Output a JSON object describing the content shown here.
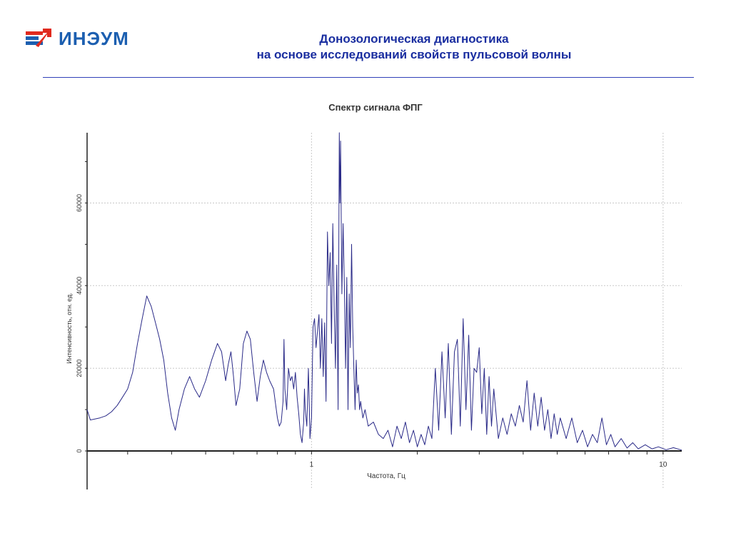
{
  "logo": {
    "text": "ИНЭУМ",
    "arrow_color": "#e02a1e",
    "text_color": "#1c5fb0"
  },
  "header": {
    "line1": "Донозологическая диагностика",
    "line2": "на основе исследований свойств пульсовой волны",
    "color": "#1a2ea0"
  },
  "chart_data": {
    "type": "line",
    "title": "Спектр сигнала ФПГ",
    "xlabel": "Частота, Гц",
    "ylabel": "Интенсивность, отн. ед.",
    "x_scale": "log",
    "xlim": [
      0.23,
      11.3
    ],
    "ylim": [
      0,
      77000
    ],
    "x_ticks": [
      {
        "value": 1,
        "label": "1"
      },
      {
        "value": 10,
        "label": "10"
      }
    ],
    "y_ticks": [
      {
        "value": 0,
        "label": "0"
      },
      {
        "value": 20000,
        "label": "20000"
      },
      {
        "value": 40000,
        "label": "40000"
      },
      {
        "value": 60000,
        "label": "60000"
      }
    ],
    "grid": true,
    "line_color": "#2a2a88",
    "series": [
      {
        "values": [
          [
            0.23,
            10000
          ],
          [
            0.235,
            7500
          ],
          [
            0.25,
            8000
          ],
          [
            0.26,
            8500
          ],
          [
            0.27,
            9500
          ],
          [
            0.28,
            11000
          ],
          [
            0.29,
            13000
          ],
          [
            0.3,
            15000
          ],
          [
            0.31,
            19000
          ],
          [
            0.32,
            26000
          ],
          [
            0.33,
            32000
          ],
          [
            0.34,
            37500
          ],
          [
            0.35,
            35000
          ],
          [
            0.36,
            31000
          ],
          [
            0.37,
            27000
          ],
          [
            0.38,
            22000
          ],
          [
            0.39,
            14000
          ],
          [
            0.4,
            8000
          ],
          [
            0.41,
            5000
          ],
          [
            0.42,
            10000
          ],
          [
            0.435,
            15000
          ],
          [
            0.45,
            18000
          ],
          [
            0.465,
            15000
          ],
          [
            0.48,
            13000
          ],
          [
            0.5,
            17000
          ],
          [
            0.52,
            22000
          ],
          [
            0.54,
            26000
          ],
          [
            0.555,
            24000
          ],
          [
            0.57,
            17000
          ],
          [
            0.58,
            21000
          ],
          [
            0.59,
            24000
          ],
          [
            0.6,
            18000
          ],
          [
            0.61,
            11000
          ],
          [
            0.625,
            15000
          ],
          [
            0.64,
            26000
          ],
          [
            0.655,
            29000
          ],
          [
            0.67,
            27000
          ],
          [
            0.685,
            19000
          ],
          [
            0.7,
            12000
          ],
          [
            0.715,
            18000
          ],
          [
            0.73,
            22000
          ],
          [
            0.745,
            19000
          ],
          [
            0.76,
            17000
          ],
          [
            0.78,
            15000
          ],
          [
            0.8,
            8000
          ],
          [
            0.81,
            6000
          ],
          [
            0.82,
            7000
          ],
          [
            0.83,
            12000
          ],
          [
            0.835,
            27000
          ],
          [
            0.84,
            15000
          ],
          [
            0.85,
            10000
          ],
          [
            0.86,
            20000
          ],
          [
            0.87,
            17000
          ],
          [
            0.88,
            18000
          ],
          [
            0.89,
            15000
          ],
          [
            0.9,
            19000
          ],
          [
            0.91,
            13000
          ],
          [
            0.92,
            9000
          ],
          [
            0.93,
            4000
          ],
          [
            0.94,
            2000
          ],
          [
            0.95,
            7000
          ],
          [
            0.955,
            15000
          ],
          [
            0.96,
            10000
          ],
          [
            0.97,
            6000
          ],
          [
            0.98,
            20000
          ],
          [
            0.985,
            12000
          ],
          [
            0.99,
            3000
          ],
          [
            1.0,
            8000
          ],
          [
            1.01,
            30000
          ],
          [
            1.02,
            32000
          ],
          [
            1.03,
            25000
          ],
          [
            1.05,
            33000
          ],
          [
            1.06,
            20000
          ],
          [
            1.07,
            32000
          ],
          [
            1.08,
            18000
          ],
          [
            1.09,
            31000
          ],
          [
            1.1,
            12000
          ],
          [
            1.11,
            53000
          ],
          [
            1.12,
            40000
          ],
          [
            1.13,
            48000
          ],
          [
            1.14,
            26000
          ],
          [
            1.15,
            55000
          ],
          [
            1.16,
            35000
          ],
          [
            1.17,
            20000
          ],
          [
            1.18,
            45000
          ],
          [
            1.19,
            10000
          ],
          [
            1.2,
            77000
          ],
          [
            1.205,
            60000
          ],
          [
            1.21,
            75000
          ],
          [
            1.22,
            38000
          ],
          [
            1.23,
            55000
          ],
          [
            1.24,
            40000
          ],
          [
            1.25,
            20000
          ],
          [
            1.26,
            42000
          ],
          [
            1.27,
            10000
          ],
          [
            1.28,
            38000
          ],
          [
            1.29,
            25000
          ],
          [
            1.3,
            50000
          ],
          [
            1.31,
            30000
          ],
          [
            1.32,
            20000
          ],
          [
            1.33,
            10000
          ],
          [
            1.34,
            22000
          ],
          [
            1.35,
            14000
          ],
          [
            1.36,
            16000
          ],
          [
            1.37,
            10000
          ],
          [
            1.38,
            12000
          ],
          [
            1.4,
            8000
          ],
          [
            1.42,
            10000
          ],
          [
            1.45,
            6000
          ],
          [
            1.5,
            7000
          ],
          [
            1.55,
            4000
          ],
          [
            1.6,
            3000
          ],
          [
            1.65,
            5000
          ],
          [
            1.7,
            1000
          ],
          [
            1.75,
            6000
          ],
          [
            1.8,
            3000
          ],
          [
            1.85,
            7000
          ],
          [
            1.9,
            2000
          ],
          [
            1.95,
            5000
          ],
          [
            2.0,
            1000
          ],
          [
            2.05,
            4000
          ],
          [
            2.1,
            1500
          ],
          [
            2.15,
            6000
          ],
          [
            2.2,
            3000
          ],
          [
            2.25,
            20000
          ],
          [
            2.3,
            5000
          ],
          [
            2.35,
            24000
          ],
          [
            2.4,
            8000
          ],
          [
            2.45,
            26000
          ],
          [
            2.5,
            4000
          ],
          [
            2.55,
            24000
          ],
          [
            2.6,
            27000
          ],
          [
            2.65,
            6000
          ],
          [
            2.7,
            32000
          ],
          [
            2.75,
            10000
          ],
          [
            2.8,
            28000
          ],
          [
            2.85,
            5000
          ],
          [
            2.9,
            20000
          ],
          [
            2.95,
            19000
          ],
          [
            3.0,
            25000
          ],
          [
            3.05,
            9000
          ],
          [
            3.1,
            20000
          ],
          [
            3.15,
            4000
          ],
          [
            3.2,
            18000
          ],
          [
            3.25,
            6000
          ],
          [
            3.3,
            15000
          ],
          [
            3.4,
            3000
          ],
          [
            3.5,
            8000
          ],
          [
            3.6,
            4000
          ],
          [
            3.7,
            9000
          ],
          [
            3.8,
            6000
          ],
          [
            3.9,
            11000
          ],
          [
            4.0,
            7000
          ],
          [
            4.1,
            17000
          ],
          [
            4.2,
            5000
          ],
          [
            4.3,
            14000
          ],
          [
            4.4,
            6000
          ],
          [
            4.5,
            13000
          ],
          [
            4.6,
            5000
          ],
          [
            4.7,
            10000
          ],
          [
            4.8,
            3000
          ],
          [
            4.9,
            9000
          ],
          [
            5.0,
            4000
          ],
          [
            5.1,
            8000
          ],
          [
            5.3,
            3000
          ],
          [
            5.5,
            8000
          ],
          [
            5.7,
            2000
          ],
          [
            5.9,
            5000
          ],
          [
            6.1,
            1000
          ],
          [
            6.3,
            4000
          ],
          [
            6.5,
            2000
          ],
          [
            6.7,
            8000
          ],
          [
            6.9,
            1500
          ],
          [
            7.1,
            4000
          ],
          [
            7.3,
            1000
          ],
          [
            7.6,
            3000
          ],
          [
            7.9,
            700
          ],
          [
            8.2,
            2000
          ],
          [
            8.5,
            500
          ],
          [
            8.9,
            1500
          ],
          [
            9.3,
            500
          ],
          [
            9.7,
            1000
          ],
          [
            10.2,
            300
          ],
          [
            10.7,
            800
          ],
          [
            11.3,
            200
          ]
        ]
      }
    ]
  }
}
